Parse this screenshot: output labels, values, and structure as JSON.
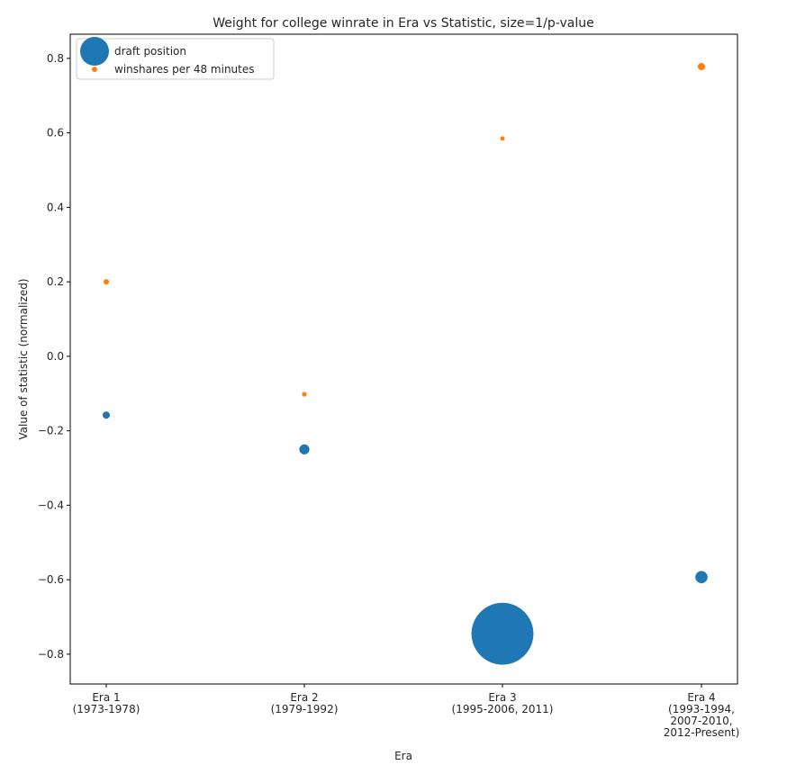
{
  "chart_data": {
    "type": "scatter",
    "title": "Weight for college winrate in Era vs Statistic, size=1/p-value",
    "xlabel": "Era",
    "ylabel": "Value of statistic (normalized)",
    "categories": [
      [
        "Era 1",
        "(1973-1978)"
      ],
      [
        "Era 2",
        "(1979-1992)"
      ],
      [
        "Era 3",
        "(1995-2006, 2011)"
      ],
      [
        "Era 4",
        "(1993-1994,",
        "2007-2010,",
        "2012-Present)"
      ]
    ],
    "ylim": [
      -0.88,
      0.865
    ],
    "yticks": [
      -0.8,
      -0.6,
      -0.4,
      -0.2,
      0.0,
      0.2,
      0.4,
      0.6,
      0.8
    ],
    "ytick_labels": [
      "−0.8",
      "−0.6",
      "−0.4",
      "−0.2",
      "0.0",
      "0.2",
      "0.4",
      "0.6",
      "0.8"
    ],
    "grid": false,
    "legend_position": "top-left",
    "size_encoding": "1/p-value",
    "series": [
      {
        "name": "draft position",
        "color": "#1f77b4",
        "values": [
          -0.158,
          -0.25,
          -0.745,
          -0.593
        ],
        "sizes": [
          2,
          4,
          160,
          6
        ]
      },
      {
        "name": "winshares per 48 minutes",
        "color": "#ff7f0e",
        "values": [
          0.2,
          -0.102,
          0.585,
          0.778
        ],
        "sizes": [
          1.1,
          0.8,
          0.7,
          2
        ]
      }
    ]
  }
}
